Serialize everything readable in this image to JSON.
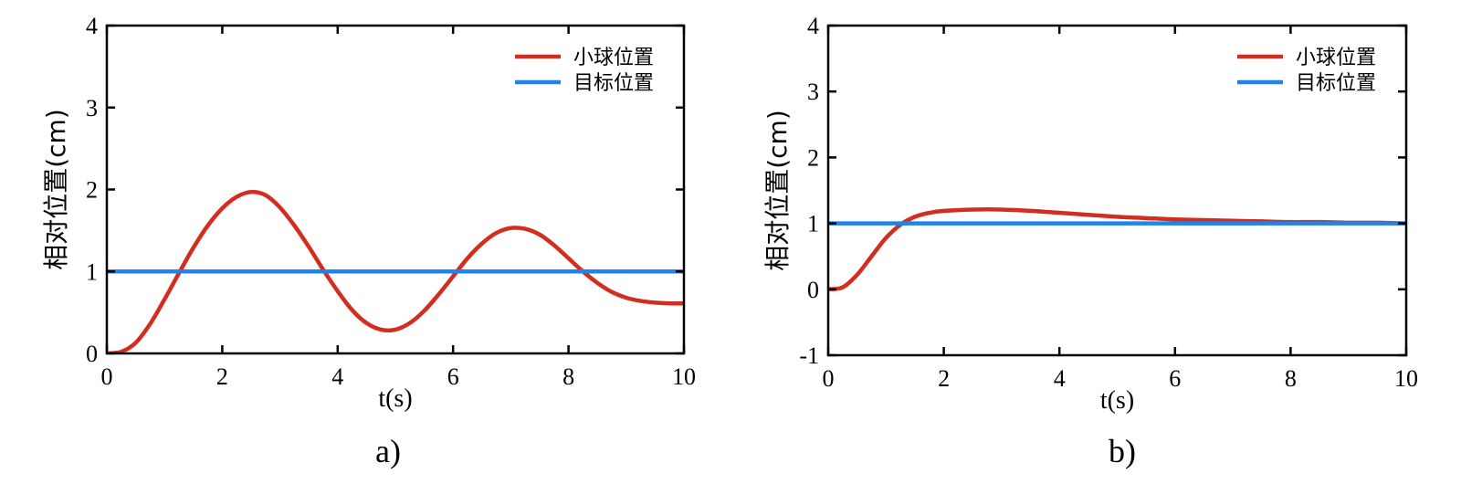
{
  "colors": {
    "ball": "#d22d1e",
    "target": "#1f84e6",
    "axis": "#000000"
  },
  "chart_data": [
    {
      "type": "line",
      "caption": "a)",
      "xlabel": "t(s)",
      "ylabel": "相对位置(cm)",
      "xlim": [
        0,
        10
      ],
      "ylim": [
        0,
        4
      ],
      "xticks": [
        0,
        2,
        4,
        6,
        8,
        10
      ],
      "yticks": [
        0,
        1,
        2,
        3,
        4
      ],
      "legend_position": "top-right",
      "series": [
        {
          "name": "小球位置",
          "color_key": "ball",
          "x": [
            0,
            0.25,
            0.5,
            0.75,
            1.0,
            1.25,
            1.5,
            1.75,
            2.0,
            2.25,
            2.5,
            2.75,
            3.0,
            3.25,
            3.5,
            3.75,
            4.0,
            4.25,
            4.5,
            4.75,
            5.0,
            5.25,
            5.5,
            5.75,
            6.0,
            6.25,
            6.5,
            6.75,
            7.0,
            7.25,
            7.5,
            7.75,
            8.0,
            8.25,
            8.5,
            8.75,
            9.0,
            9.25,
            9.5,
            9.75,
            10.0
          ],
          "y": [
            0,
            0.02,
            0.13,
            0.36,
            0.66,
            0.98,
            1.29,
            1.56,
            1.77,
            1.91,
            1.97,
            1.93,
            1.78,
            1.56,
            1.3,
            1.02,
            0.76,
            0.53,
            0.37,
            0.29,
            0.29,
            0.37,
            0.52,
            0.72,
            0.94,
            1.16,
            1.34,
            1.47,
            1.53,
            1.52,
            1.45,
            1.32,
            1.16,
            1.0,
            0.86,
            0.75,
            0.68,
            0.64,
            0.62,
            0.61,
            0.61
          ]
        },
        {
          "name": "目标位置",
          "color_key": "target",
          "x": [
            0,
            10
          ],
          "y": [
            1,
            1
          ]
        }
      ]
    },
    {
      "type": "line",
      "caption": "b)",
      "xlabel": "t(s)",
      "ylabel": "相对位置(cm)",
      "xlim": [
        0,
        10
      ],
      "ylim": [
        -1,
        4
      ],
      "xticks": [
        0,
        2,
        4,
        6,
        8,
        10
      ],
      "yticks": [
        -1,
        0,
        1,
        2,
        3,
        4
      ],
      "legend_position": "top-right",
      "series": [
        {
          "name": "小球位置",
          "color_key": "ball",
          "x": [
            0,
            0.25,
            0.5,
            0.75,
            1.0,
            1.25,
            1.5,
            1.75,
            2.0,
            2.5,
            3.0,
            3.5,
            4.0,
            4.5,
            5.0,
            5.5,
            6.0,
            6.5,
            7.0,
            7.5,
            8.0,
            8.5,
            9.0,
            9.5,
            10.0
          ],
          "y": [
            0,
            0.03,
            0.22,
            0.5,
            0.78,
            0.98,
            1.1,
            1.16,
            1.19,
            1.21,
            1.21,
            1.19,
            1.16,
            1.13,
            1.1,
            1.08,
            1.06,
            1.05,
            1.04,
            1.03,
            1.02,
            1.02,
            1.01,
            1.01,
            1.0
          ]
        },
        {
          "name": "目标位置",
          "color_key": "target",
          "x": [
            0,
            10
          ],
          "y": [
            1,
            1
          ]
        }
      ]
    }
  ]
}
